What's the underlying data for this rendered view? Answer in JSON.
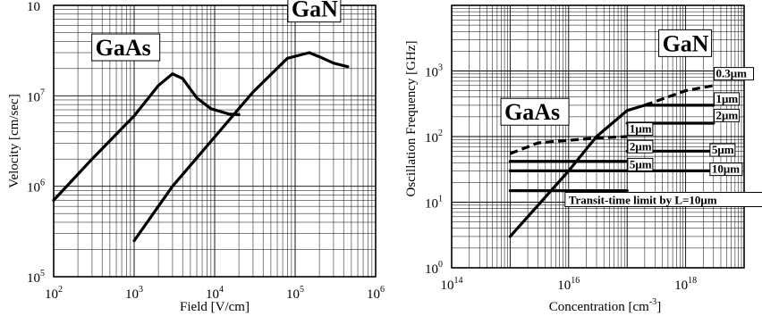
{
  "chart_data": [
    {
      "type": "line",
      "xscale": "log",
      "yscale": "log",
      "xlim": [
        100,
        1000000
      ],
      "ylim": [
        100000,
        100000000
      ],
      "xlabel": "Field [V/cm]",
      "ylabel": "Velocity [cm/sec]",
      "x_tick_labels": [
        {
          "base": "10",
          "exp": "2"
        },
        {
          "base": "10",
          "exp": "3"
        },
        {
          "base": "10",
          "exp": "4"
        },
        {
          "base": "10",
          "exp": "5"
        },
        {
          "base": "10",
          "exp": "6"
        }
      ],
      "y_tick_labels": [
        {
          "base": "10",
          "exp": "5"
        },
        {
          "base": "10",
          "exp": "6"
        },
        {
          "base": "10",
          "exp": "7"
        },
        {
          "base": "10",
          "exp": ""
        }
      ],
      "grid": true,
      "series": [
        {
          "name": "GaAs",
          "points": [
            [
              100,
              700000
            ],
            [
              300,
              2000000
            ],
            [
              1000,
              6000000
            ],
            [
              2000,
              13000000
            ],
            [
              3000,
              17500000
            ],
            [
              4000,
              15500000
            ],
            [
              6000,
              9500000
            ],
            [
              9000,
              7200000
            ],
            [
              15000,
              6300000
            ],
            [
              20000,
              6200000
            ]
          ]
        },
        {
          "name": "GaN",
          "points": [
            [
              1000,
              250000
            ],
            [
              3000,
              1000000
            ],
            [
              10000,
              3500000
            ],
            [
              30000,
              11000000
            ],
            [
              80000,
              26000000
            ],
            [
              150000,
              30000000
            ],
            [
              200000,
              27000000
            ],
            [
              300000,
              23000000
            ],
            [
              450000,
              21000000
            ]
          ]
        }
      ],
      "annotations": [
        {
          "text": "GaAs",
          "x": 330,
          "y": 28000000
        },
        {
          "text": "GaN",
          "x": 90000,
          "y": 75000000
        }
      ]
    },
    {
      "type": "line",
      "xscale": "log",
      "yscale": "log",
      "xlim": [
        100000000000000.0,
        1e+19
      ],
      "ylim": [
        1,
        10000
      ],
      "xlabel_main": "Concentration [cm",
      "xlabel_exp": "-3",
      "xlabel_close": "]",
      "ylabel": "Oscillation Frequency [GHz]",
      "x_tick_labels": [
        {
          "base": "10",
          "exp": "14"
        },
        {
          "base": "10",
          "exp": "16"
        },
        {
          "base": "10",
          "exp": "18"
        }
      ],
      "y_tick_labels": [
        {
          "base": "10",
          "exp": "0"
        },
        {
          "base": "10",
          "exp": "1"
        },
        {
          "base": "10",
          "exp": "2"
        },
        {
          "base": "10",
          "exp": "3"
        }
      ],
      "grid": true,
      "series": [
        {
          "name": "Transit-time limit by L=10μm",
          "points": [
            [
              1000000000000000.0,
              3
            ],
            [
              3000000000000000.0,
              9
            ],
            [
              1e+16,
              30
            ],
            [
              3e+16,
              100
            ],
            [
              1e+17,
              250
            ],
            [
              2e+17,
              300
            ]
          ]
        },
        {
          "name": "GaAs 1μm",
          "points": [
            [
              1000000000000000.0,
              55
            ],
            [
              3000000000000000.0,
              80
            ],
            [
              3e+16,
              95
            ],
            [
              1e+17,
              100
            ]
          ]
        },
        {
          "name": "GaAs 2μm",
          "points": [
            [
              1000000000000000.0,
              42
            ],
            [
              1e+17,
              42
            ]
          ]
        },
        {
          "name": "GaAs 5μm",
          "points": [
            [
              1000000000000000.0,
              30
            ],
            [
              1e+17,
              30
            ]
          ]
        },
        {
          "name": "GaAs 10μm",
          "points": [
            [
              1000000000000000.0,
              15
            ],
            [
              1e+17,
              15
            ]
          ]
        },
        {
          "name": "GaN 0.3μm",
          "points": [
            [
              2e+17,
              300
            ],
            [
              1e+18,
              500
            ],
            [
              3e+18,
              600
            ]
          ]
        },
        {
          "name": "GaN 1μm",
          "points": [
            [
              2e+17,
              300
            ],
            [
              3e+18,
              300
            ]
          ]
        },
        {
          "name": "GaN 2μm",
          "points": [
            [
              1e+17,
              160
            ],
            [
              3e+18,
              160
            ]
          ]
        },
        {
          "name": "GaN 5μm",
          "points": [
            [
              1e+17,
              60
            ],
            [
              3e+18,
              60
            ]
          ]
        },
        {
          "name": "GaN 10μm",
          "points": [
            [
              1e+17,
              30
            ],
            [
              3e+18,
              30
            ]
          ]
        }
      ],
      "annotations": [
        {
          "text": "GaN",
          "x": 4e+17,
          "y": 2000
        },
        {
          "text": "GaAs",
          "x": 800000000000000.0,
          "y": 180
        }
      ],
      "line_labels": [
        {
          "text": "0.3μm",
          "x": 3.3e+18,
          "y": 800
        },
        {
          "text": "1μm",
          "x": 3.3e+18,
          "y": 330
        },
        {
          "text": "2μm",
          "x": 3.3e+18,
          "y": 185
        },
        {
          "text": "1μm",
          "x": 1.1e+17,
          "y": 115
        },
        {
          "text": "2μm",
          "x": 1.1e+17,
          "y": 62
        },
        {
          "text": "5μm",
          "x": 2.8e+18,
          "y": 55
        },
        {
          "text": "5μm",
          "x": 1.1e+17,
          "y": 33
        },
        {
          "text": "10μm",
          "x": 2.8e+18,
          "y": 28
        }
      ],
      "note": {
        "text": "Transit-time limit by L=10μm",
        "x": 1e+16,
        "y": 10
      }
    }
  ]
}
